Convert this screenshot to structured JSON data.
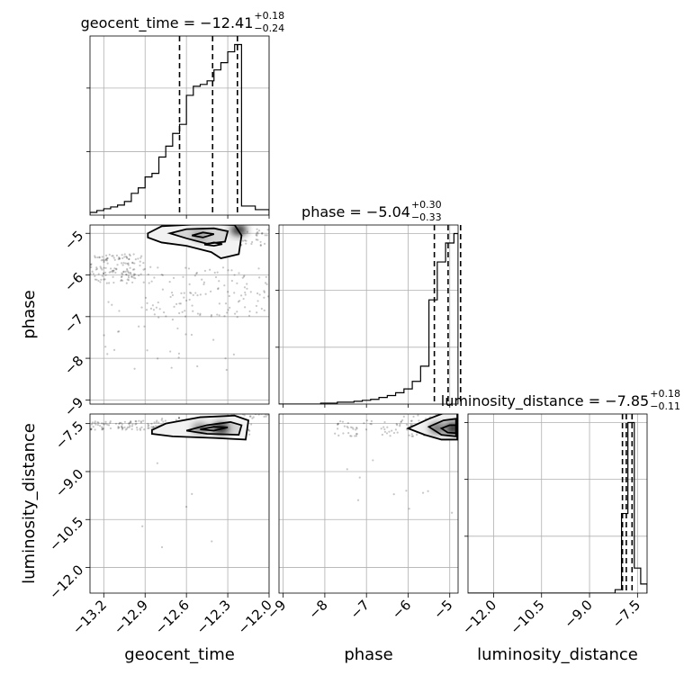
{
  "chart_data": {
    "type": "corner",
    "parameters": [
      {
        "name": "geocent_time",
        "axis_label": "geocent_time",
        "range": [
          -13.3,
          -12.0
        ],
        "ticks": [
          -13.2,
          -12.9,
          -12.6,
          -12.3,
          -12.0
        ],
        "tick_labels": [
          "−13.2",
          "−12.9",
          "−12.6",
          "−12.3",
          "−12.0"
        ],
        "title": {
          "prefix": "geocent_time = −12.41",
          "plus": "+0.18",
          "minus": "−0.24"
        },
        "quantiles": [
          -12.65,
          -12.41,
          -12.23
        ],
        "hist": {
          "bin_edges": [
            -13.3,
            -13.25,
            -13.2,
            -13.15,
            -13.1,
            -13.05,
            -13.0,
            -12.95,
            -12.9,
            -12.85,
            -12.8,
            -12.75,
            -12.7,
            -12.65,
            -12.6,
            -12.55,
            -12.5,
            -12.45,
            -12.4,
            -12.35,
            -12.3,
            -12.25,
            -12.2,
            -12.15,
            -12.1,
            -12.05,
            -12.0
          ],
          "counts": [
            3,
            5,
            7,
            9,
            11,
            15,
            24,
            30,
            42,
            46,
            64,
            76,
            90,
            100,
            132,
            142,
            144,
            148,
            160,
            168,
            180,
            188,
            10,
            10,
            6,
            6
          ]
        }
      },
      {
        "name": "phase",
        "axis_label": "phase",
        "range": [
          -9.1,
          -4.8
        ],
        "ticks": [
          -9,
          -8,
          -7,
          -6,
          -5
        ],
        "tick_labels": [
          "−9",
          "−8",
          "−7",
          "−6",
          "−5"
        ],
        "title": {
          "prefix": "phase = −5.04",
          "plus": "+0.30",
          "minus": "−0.33"
        },
        "quantiles": [
          -5.37,
          -5.04,
          -4.74
        ],
        "hist": {
          "bin_edges": [
            -9.1,
            -8.9,
            -8.7,
            -8.5,
            -8.3,
            -8.1,
            -7.9,
            -7.7,
            -7.5,
            -7.3,
            -7.1,
            -6.9,
            -6.7,
            -6.5,
            -6.3,
            -6.1,
            -5.9,
            -5.7,
            -5.5,
            -5.3,
            -5.1,
            -4.9,
            -4.8
          ],
          "counts": [
            0,
            0,
            0,
            0,
            0,
            1,
            1,
            2,
            2,
            3,
            4,
            5,
            7,
            9,
            12,
            16,
            24,
            40,
            110,
            150,
            170,
            180
          ]
        }
      },
      {
        "name": "luminosity_distance",
        "axis_label": "luminosity_distance",
        "range": [
          -12.8,
          -7.2
        ],
        "ticks": [
          -12.0,
          -10.5,
          -9.0,
          -7.5
        ],
        "tick_labels": [
          "−12.0",
          "−10.5",
          "−9.0",
          "−7.5"
        ],
        "title": {
          "prefix": "luminosity_distance = −7.85",
          "plus": "+0.18",
          "minus": "−0.11"
        },
        "quantiles": [
          -7.97,
          -7.85,
          -7.67
        ],
        "hist": {
          "bin_edges": [
            -12.8,
            -12.6,
            -12.4,
            -12.2,
            -12.0,
            -11.8,
            -11.6,
            -11.4,
            -11.2,
            -11.0,
            -10.8,
            -10.6,
            -10.4,
            -10.2,
            -10.0,
            -9.8,
            -9.6,
            -9.4,
            -9.2,
            -9.0,
            -8.8,
            -8.6,
            -8.4,
            -8.2,
            -8.0,
            -7.8,
            -7.6,
            -7.4,
            -7.2
          ],
          "counts": [
            0,
            0,
            0,
            0,
            0,
            0,
            0,
            0,
            0,
            0,
            0,
            0,
            0,
            0,
            0,
            0,
            0,
            0,
            0,
            0,
            0,
            0,
            0,
            3,
            70,
            150,
            22,
            8
          ]
        }
      }
    ],
    "pairs": [
      {
        "x": "geocent_time",
        "y": "phase",
        "scatter_clusters": [
          {
            "x": [
              -13.3,
              -12.9
            ],
            "y": [
              -6.2,
              -5.5
            ],
            "n": 140
          },
          {
            "x": [
              -12.9,
              -12.0
            ],
            "y": [
              -7.0,
              -5.8
            ],
            "n": 120
          },
          {
            "x": [
              -12.8,
              -12.0
            ],
            "y": [
              -5.3,
              -4.9
            ],
            "n": 80
          },
          {
            "x": [
              -13.2,
              -12.2
            ],
            "y": [
              -8.3,
              -6.5
            ],
            "n": 35
          }
        ],
        "contours": [
          [
            [
              -12.88,
              -5.0
            ],
            [
              -12.78,
              -4.83
            ],
            [
              -12.5,
              -4.78
            ],
            [
              -12.25,
              -4.8
            ],
            [
              -12.2,
              -5.05
            ],
            [
              -12.22,
              -5.5
            ],
            [
              -12.35,
              -5.6
            ],
            [
              -12.42,
              -5.45
            ],
            [
              -12.6,
              -5.3
            ],
            [
              -12.78,
              -5.22
            ],
            [
              -12.88,
              -5.1
            ]
          ],
          [
            [
              -12.72,
              -5.0
            ],
            [
              -12.6,
              -4.9
            ],
            [
              -12.4,
              -4.88
            ],
            [
              -12.3,
              -4.95
            ],
            [
              -12.32,
              -5.2
            ],
            [
              -12.45,
              -5.25
            ],
            [
              -12.6,
              -5.12
            ]
          ],
          [
            [
              -12.56,
              -5.05
            ],
            [
              -12.48,
              -4.98
            ],
            [
              -12.4,
              -5.02
            ],
            [
              -12.48,
              -5.1
            ]
          ],
          [
            [
              -12.47,
              -5.27
            ],
            [
              -12.4,
              -5.22
            ],
            [
              -12.34,
              -5.26
            ],
            [
              -12.4,
              -5.3
            ]
          ]
        ],
        "density_peaks": [
          {
            "x": -12.22,
            "y": -4.92,
            "level": 0.9
          },
          {
            "x": -12.5,
            "y": -5.05,
            "level": 0.4
          }
        ]
      },
      {
        "x": "geocent_time",
        "y": "luminosity_distance",
        "scatter_clusters": [
          {
            "x": [
              -13.3,
              -12.8
            ],
            "y": [
              -7.7,
              -7.4
            ],
            "n": 90
          },
          {
            "x": [
              -12.8,
              -12.1
            ],
            "y": [
              -7.9,
              -7.3
            ],
            "n": 80
          },
          {
            "x": [
              -12.3,
              -12.0
            ],
            "y": [
              -7.3,
              -7.0
            ],
            "n": 40
          },
          {
            "x": [
              -13.1,
              -12.1
            ],
            "y": [
              -11.5,
              -8.5
            ],
            "n": 6
          }
        ],
        "contours": [
          [
            [
              -12.85,
              -7.7
            ],
            [
              -12.75,
              -7.5
            ],
            [
              -12.5,
              -7.3
            ],
            [
              -12.25,
              -7.25
            ],
            [
              -12.15,
              -7.4
            ],
            [
              -12.17,
              -8.0
            ],
            [
              -12.4,
              -7.95
            ],
            [
              -12.7,
              -7.9
            ],
            [
              -12.85,
              -7.82
            ]
          ],
          [
            [
              -12.6,
              -7.72
            ],
            [
              -12.45,
              -7.55
            ],
            [
              -12.28,
              -7.45
            ],
            [
              -12.2,
              -7.55
            ],
            [
              -12.22,
              -7.85
            ],
            [
              -12.45,
              -7.82
            ]
          ],
          [
            [
              -12.5,
              -7.68
            ],
            [
              -12.4,
              -7.6
            ],
            [
              -12.3,
              -7.62
            ],
            [
              -12.4,
              -7.72
            ]
          ]
        ],
        "density_peaks": [
          {
            "x": -12.35,
            "y": -7.65,
            "level": 0.9
          },
          {
            "x": -12.5,
            "y": -7.65,
            "level": 0.5
          }
        ]
      },
      {
        "x": "phase",
        "y": "luminosity_distance",
        "scatter_clusters": [
          {
            "x": [
              -7.8,
              -4.8
            ],
            "y": [
              -7.9,
              -7.4
            ],
            "n": 90
          },
          {
            "x": [
              -6.3,
              -4.8
            ],
            "y": [
              -7.7,
              -7.1
            ],
            "n": 60
          },
          {
            "x": [
              -8.0,
              -4.9
            ],
            "y": [
              -10.3,
              -8.5
            ],
            "n": 10
          }
        ],
        "contours": [
          [
            [
              -6.0,
              -7.65
            ],
            [
              -5.5,
              -7.35
            ],
            [
              -5.1,
              -7.15
            ],
            [
              -4.82,
              -7.1
            ],
            [
              -4.82,
              -8.0
            ],
            [
              -5.2,
              -8.0
            ],
            [
              -5.6,
              -7.85
            ]
          ],
          [
            [
              -5.5,
              -7.6
            ],
            [
              -5.15,
              -7.4
            ],
            [
              -4.85,
              -7.35
            ],
            [
              -4.85,
              -7.9
            ],
            [
              -5.2,
              -7.85
            ]
          ],
          [
            [
              -5.2,
              -7.65
            ],
            [
              -5.0,
              -7.55
            ],
            [
              -4.85,
              -7.55
            ],
            [
              -4.85,
              -7.8
            ],
            [
              -5.05,
              -7.78
            ]
          ]
        ],
        "density_peaks": [
          {
            "x": -4.92,
            "y": -7.65,
            "level": 0.9
          },
          {
            "x": -5.3,
            "y": -7.65,
            "level": 0.6
          }
        ]
      }
    ],
    "grid": true,
    "colors": {
      "line": "#000000",
      "grid": "#b0b0b0",
      "scatter": "#000000"
    }
  }
}
